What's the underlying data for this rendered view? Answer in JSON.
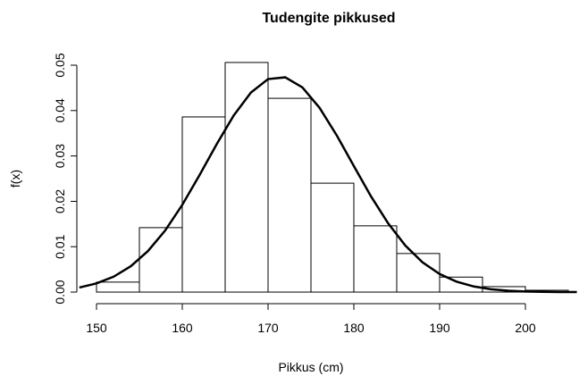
{
  "chart_data": {
    "type": "histogram",
    "title": "Tudengite pikkused",
    "xlabel": "Pikkus (cm)",
    "ylabel": "f(x)",
    "bins": [
      150,
      155,
      160,
      165,
      170,
      175,
      180,
      185,
      190,
      195,
      200,
      205
    ],
    "values": [
      0.0022,
      0.0142,
      0.0386,
      0.0506,
      0.0427,
      0.024,
      0.0146,
      0.0085,
      0.0033,
      0.0012,
      0.0004
    ],
    "color": "#ffffff",
    "edgecolor": "#000000",
    "curve": {
      "color": "#000000",
      "x": [
        148,
        150,
        152,
        154,
        156,
        158,
        160,
        162,
        164,
        166,
        168,
        170,
        172,
        174,
        176,
        178,
        180,
        182,
        184,
        186,
        188,
        190,
        192,
        194,
        196,
        198,
        200,
        202,
        204,
        206
      ],
      "y": [
        0.00101,
        0.00191,
        0.00339,
        0.0057,
        0.00904,
        0.01356,
        0.01922,
        0.02574,
        0.03256,
        0.03893,
        0.04397,
        0.04694,
        0.04733,
        0.04511,
        0.04062,
        0.03456,
        0.02778,
        0.0211,
        0.01515,
        0.01027,
        0.00658,
        0.00399,
        0.00228,
        0.00123,
        0.00063,
        0.0003,
        0.00014,
        6e-05,
        2e-05,
        1e-05
      ]
    },
    "xlim": [
      148,
      206
    ],
    "ylim": [
      -0.002,
      0.0525
    ],
    "xticks": [
      150,
      160,
      170,
      180,
      190,
      200
    ],
    "yticks": [
      {
        "value": 0,
        "label": "0.00"
      },
      0.01,
      0.02,
      0.03,
      0.04,
      0.05
    ],
    "grid": false
  }
}
